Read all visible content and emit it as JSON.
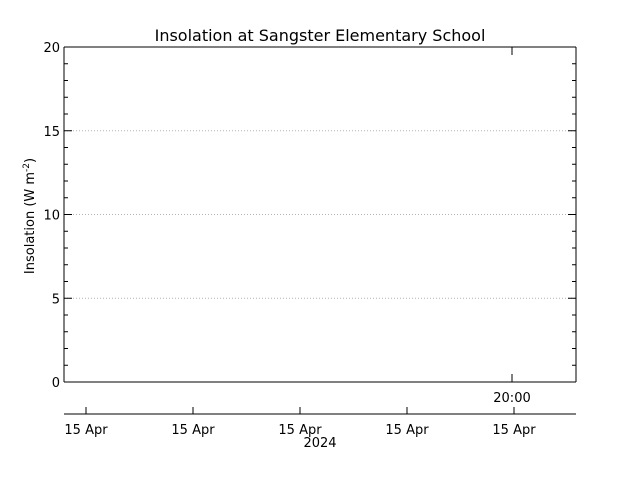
{
  "chart_data": {
    "type": "line",
    "title": "Insolation at Sangster Elementary School",
    "ylabel_main": "Insolation (W m",
    "ylabel_sup": "-2",
    "ylabel_close": ")",
    "ylim": [
      0,
      20
    ],
    "y_ticks": [
      "0",
      "5",
      "10",
      "15",
      "20"
    ],
    "grid": true,
    "x_tick_labels": [
      "15 Apr",
      "15 Apr",
      "15 Apr",
      "15 Apr",
      "15 Apr"
    ],
    "x_annotation": "20:00",
    "x_year": "2024",
    "series": [
      {
        "values": []
      }
    ]
  }
}
